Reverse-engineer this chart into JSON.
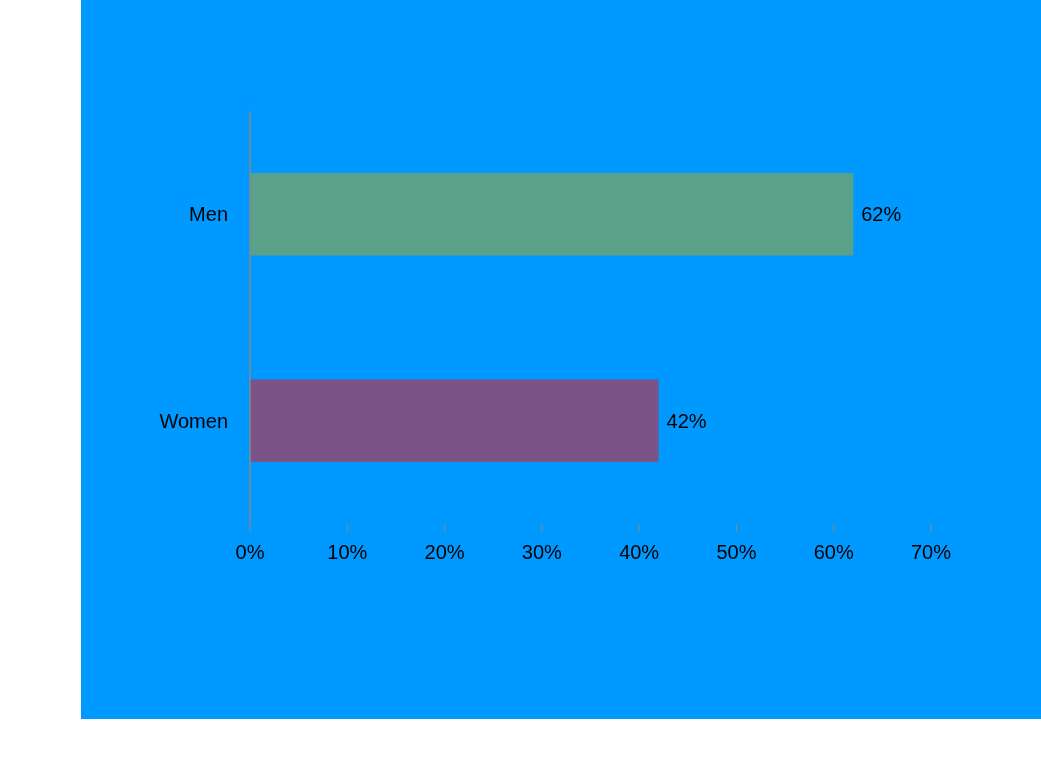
{
  "chart_data": {
    "type": "bar",
    "orientation": "horizontal",
    "categories": [
      "Men",
      "Women"
    ],
    "values": [
      62,
      42
    ],
    "colors": [
      "#5aa18a",
      "#7a5488"
    ],
    "value_labels": [
      "62%",
      "42%"
    ],
    "xlim": [
      0,
      70
    ],
    "xticks": [
      {
        "value": 0,
        "label": "0%"
      },
      {
        "value": 10,
        "label": "10%"
      },
      {
        "value": 20,
        "label": "20%"
      },
      {
        "value": 30,
        "label": "30%"
      },
      {
        "value": 40,
        "label": "40%"
      },
      {
        "value": 50,
        "label": "50%"
      },
      {
        "value": 60,
        "label": "60%"
      },
      {
        "value": 70,
        "label": "70%"
      }
    ],
    "grid": false
  }
}
